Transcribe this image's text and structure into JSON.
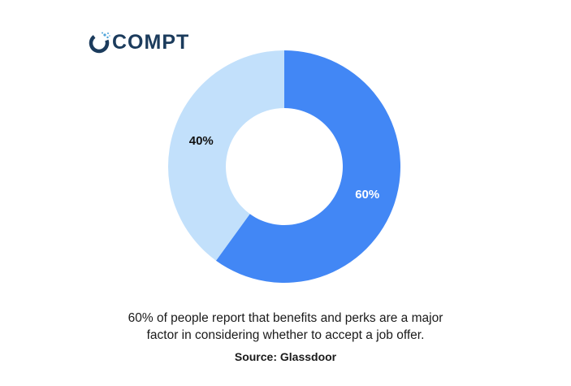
{
  "brand": {
    "logo_text": "COMPT",
    "logo_color": "#1b3b5c",
    "logo_accent": "#4fa3d9"
  },
  "chart_data": {
    "type": "pie",
    "donut": true,
    "slices": [
      {
        "label": "60%",
        "value": 60,
        "color": "#4287f5"
      },
      {
        "label": "40%",
        "value": 40,
        "color": "#c2e0fb"
      }
    ],
    "title": "",
    "legend": "none"
  },
  "caption": {
    "line1": "60% of people report that benefits and perks are a major",
    "line2": "factor in considering whether to accept a job offer."
  },
  "source": "Source: Glassdoor"
}
